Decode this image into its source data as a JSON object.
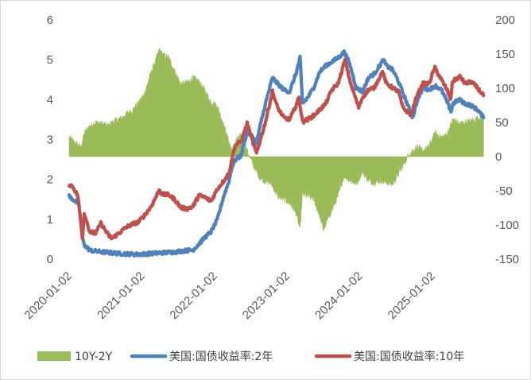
{
  "chart_data": {
    "type": "line",
    "x_ticks": [
      "2020-01-02",
      "2021-01-02",
      "2022-01-02",
      "2023-01-02",
      "2024-01-02",
      "2025-01-02"
    ],
    "y_left": {
      "range": [
        0,
        6
      ],
      "ticks": [
        0,
        1,
        2,
        3,
        4,
        5,
        6
      ]
    },
    "y_right": {
      "range": [
        -150,
        200
      ],
      "ticks": [
        -150,
        -100,
        -50,
        0,
        50,
        100,
        150,
        200
      ]
    },
    "x_range": [
      "2020-01-02",
      "2025-09-15"
    ],
    "grid": false,
    "legend_position": "bottom",
    "series": [
      {
        "name": "10Y-2Y",
        "type": "area",
        "axis": "right",
        "color": "#9bbb59",
        "points": [
          [
            "2020-01-02",
            28
          ],
          [
            "2020-02-01",
            20
          ],
          [
            "2020-03-01",
            14
          ],
          [
            "2020-03-20",
            35
          ],
          [
            "2020-04-15",
            45
          ],
          [
            "2020-05-15",
            50
          ],
          [
            "2020-06-15",
            48
          ],
          [
            "2020-07-15",
            45
          ],
          [
            "2020-08-15",
            52
          ],
          [
            "2020-09-15",
            55
          ],
          [
            "2020-10-15",
            62
          ],
          [
            "2020-11-15",
            68
          ],
          [
            "2020-12-15",
            78
          ],
          [
            "2021-01-15",
            92
          ],
          [
            "2021-02-15",
            122
          ],
          [
            "2021-03-15",
            143
          ],
          [
            "2021-03-31",
            156
          ],
          [
            "2021-04-20",
            148
          ],
          [
            "2021-05-15",
            145
          ],
          [
            "2021-06-15",
            126
          ],
          [
            "2021-07-15",
            106
          ],
          [
            "2021-08-15",
            108
          ],
          [
            "2021-09-15",
            115
          ],
          [
            "2021-10-15",
            110
          ],
          [
            "2021-11-15",
            96
          ],
          [
            "2021-12-15",
            80
          ],
          [
            "2022-01-15",
            75
          ],
          [
            "2022-02-15",
            48
          ],
          [
            "2022-03-15",
            22
          ],
          [
            "2022-04-01",
            8
          ],
          [
            "2022-04-20",
            24
          ],
          [
            "2022-05-15",
            30
          ],
          [
            "2022-06-15",
            8
          ],
          [
            "2022-07-15",
            -12
          ],
          [
            "2022-08-15",
            -30
          ],
          [
            "2022-09-15",
            -36
          ],
          [
            "2022-10-15",
            -40
          ],
          [
            "2022-11-15",
            -58
          ],
          [
            "2022-12-15",
            -62
          ],
          [
            "2023-01-15",
            -68
          ],
          [
            "2023-02-15",
            -82
          ],
          [
            "2023-03-08",
            -107
          ],
          [
            "2023-03-20",
            -55
          ],
          [
            "2023-04-15",
            -58
          ],
          [
            "2023-05-15",
            -62
          ],
          [
            "2023-06-15",
            -87
          ],
          [
            "2023-07-03",
            -107
          ],
          [
            "2023-08-15",
            -78
          ],
          [
            "2023-09-15",
            -58
          ],
          [
            "2023-10-15",
            -28
          ],
          [
            "2023-11-15",
            -35
          ],
          [
            "2023-12-15",
            -40
          ],
          [
            "2024-01-15",
            -22
          ],
          [
            "2024-02-15",
            -35
          ],
          [
            "2024-03-15",
            -38
          ],
          [
            "2024-04-15",
            -35
          ],
          [
            "2024-05-15",
            -38
          ],
          [
            "2024-06-15",
            -40
          ],
          [
            "2024-07-15",
            -25
          ],
          [
            "2024-08-15",
            -8
          ],
          [
            "2024-09-06",
            4
          ],
          [
            "2024-10-01",
            10
          ],
          [
            "2024-10-15",
            14
          ],
          [
            "2024-11-15",
            8
          ],
          [
            "2024-12-15",
            15
          ],
          [
            "2025-01-15",
            35
          ],
          [
            "2025-02-15",
            28
          ],
          [
            "2025-03-15",
            32
          ],
          [
            "2025-04-15",
            55
          ],
          [
            "2025-05-15",
            48
          ],
          [
            "2025-06-15",
            50
          ],
          [
            "2025-07-15",
            52
          ],
          [
            "2025-08-15",
            56
          ],
          [
            "2025-09-15",
            58
          ]
        ]
      },
      {
        "name": "美国:国债收益率:2年",
        "type": "line",
        "axis": "left",
        "color": "#4f81bd",
        "points": [
          [
            "2020-01-02",
            1.58
          ],
          [
            "2020-02-01",
            1.45
          ],
          [
            "2020-02-20",
            1.38
          ],
          [
            "2020-03-10",
            0.5
          ],
          [
            "2020-03-20",
            0.35
          ],
          [
            "2020-04-15",
            0.22
          ],
          [
            "2020-06-15",
            0.18
          ],
          [
            "2020-09-15",
            0.14
          ],
          [
            "2020-12-15",
            0.12
          ],
          [
            "2021-03-15",
            0.15
          ],
          [
            "2021-06-15",
            0.18
          ],
          [
            "2021-08-15",
            0.22
          ],
          [
            "2021-09-15",
            0.23
          ],
          [
            "2021-10-15",
            0.38
          ],
          [
            "2021-11-15",
            0.55
          ],
          [
            "2021-12-15",
            0.68
          ],
          [
            "2022-01-15",
            0.98
          ],
          [
            "2022-02-15",
            1.55
          ],
          [
            "2022-03-15",
            1.95
          ],
          [
            "2022-03-31",
            2.32
          ],
          [
            "2022-04-15",
            2.48
          ],
          [
            "2022-05-15",
            2.6
          ],
          [
            "2022-06-15",
            3.2
          ],
          [
            "2022-07-15",
            3.05
          ],
          [
            "2022-08-01",
            2.9
          ],
          [
            "2022-08-15",
            3.25
          ],
          [
            "2022-09-15",
            3.9
          ],
          [
            "2022-10-20",
            4.55
          ],
          [
            "2022-11-15",
            4.4
          ],
          [
            "2022-12-15",
            4.25
          ],
          [
            "2023-01-15",
            4.2
          ],
          [
            "2023-02-15",
            4.65
          ],
          [
            "2023-03-08",
            5.05
          ],
          [
            "2023-03-20",
            3.9
          ],
          [
            "2023-04-15",
            4.05
          ],
          [
            "2023-05-15",
            4.3
          ],
          [
            "2023-06-15",
            4.7
          ],
          [
            "2023-07-15",
            4.85
          ],
          [
            "2023-08-15",
            4.95
          ],
          [
            "2023-09-15",
            5.05
          ],
          [
            "2023-10-18",
            5.2
          ],
          [
            "2023-11-15",
            4.85
          ],
          [
            "2023-12-15",
            4.3
          ],
          [
            "2024-01-15",
            4.2
          ],
          [
            "2024-02-15",
            4.55
          ],
          [
            "2024-03-15",
            4.65
          ],
          [
            "2024-04-30",
            5.0
          ],
          [
            "2024-05-15",
            4.85
          ],
          [
            "2024-06-15",
            4.75
          ],
          [
            "2024-07-15",
            4.45
          ],
          [
            "2024-08-15",
            4.05
          ],
          [
            "2024-09-24",
            3.55
          ],
          [
            "2024-10-15",
            3.95
          ],
          [
            "2024-11-15",
            4.3
          ],
          [
            "2024-12-15",
            4.25
          ],
          [
            "2025-01-15",
            4.35
          ],
          [
            "2025-02-15",
            4.25
          ],
          [
            "2025-03-15",
            3.95
          ],
          [
            "2025-04-05",
            3.7
          ],
          [
            "2025-04-15",
            3.9
          ],
          [
            "2025-05-15",
            4.0
          ],
          [
            "2025-06-15",
            3.9
          ],
          [
            "2025-07-15",
            3.85
          ],
          [
            "2025-08-15",
            3.75
          ],
          [
            "2025-09-15",
            3.55
          ]
        ]
      },
      {
        "name": "美国:国债收益率:10年",
        "type": "line",
        "axis": "left",
        "color": "#c0504d",
        "points": [
          [
            "2020-01-02",
            1.88
          ],
          [
            "2020-01-20",
            1.82
          ],
          [
            "2020-02-15",
            1.58
          ],
          [
            "2020-03-09",
            0.55
          ],
          [
            "2020-03-18",
            1.15
          ],
          [
            "2020-04-15",
            0.68
          ],
          [
            "2020-05-15",
            0.65
          ],
          [
            "2020-06-09",
            0.9
          ],
          [
            "2020-07-15",
            0.62
          ],
          [
            "2020-08-04",
            0.52
          ],
          [
            "2020-09-15",
            0.68
          ],
          [
            "2020-10-15",
            0.8
          ],
          [
            "2020-11-15",
            0.88
          ],
          [
            "2020-12-15",
            0.93
          ],
          [
            "2021-01-15",
            1.1
          ],
          [
            "2021-02-15",
            1.3
          ],
          [
            "2021-03-31",
            1.74
          ],
          [
            "2021-04-15",
            1.62
          ],
          [
            "2021-05-15",
            1.62
          ],
          [
            "2021-06-15",
            1.5
          ],
          [
            "2021-07-15",
            1.3
          ],
          [
            "2021-08-15",
            1.26
          ],
          [
            "2021-09-15",
            1.32
          ],
          [
            "2021-10-15",
            1.6
          ],
          [
            "2021-11-15",
            1.55
          ],
          [
            "2021-12-15",
            1.45
          ],
          [
            "2022-01-15",
            1.75
          ],
          [
            "2022-02-15",
            1.95
          ],
          [
            "2022-03-15",
            2.15
          ],
          [
            "2022-04-15",
            2.85
          ],
          [
            "2022-05-15",
            2.95
          ],
          [
            "2022-06-15",
            3.4
          ],
          [
            "2022-07-15",
            2.9
          ],
          [
            "2022-08-01",
            2.65
          ],
          [
            "2022-08-15",
            2.9
          ],
          [
            "2022-09-15",
            3.45
          ],
          [
            "2022-10-20",
            4.2
          ],
          [
            "2022-11-15",
            3.8
          ],
          [
            "2022-12-15",
            3.55
          ],
          [
            "2023-01-15",
            3.5
          ],
          [
            "2023-02-15",
            3.85
          ],
          [
            "2023-03-02",
            4.05
          ],
          [
            "2023-03-20",
            3.45
          ],
          [
            "2023-04-15",
            3.5
          ],
          [
            "2023-05-15",
            3.6
          ],
          [
            "2023-06-15",
            3.75
          ],
          [
            "2023-07-15",
            3.9
          ],
          [
            "2023-08-15",
            4.25
          ],
          [
            "2023-09-15",
            4.4
          ],
          [
            "2023-10-19",
            4.98
          ],
          [
            "2023-11-15",
            4.45
          ],
          [
            "2023-12-27",
            3.8
          ],
          [
            "2024-01-15",
            4.05
          ],
          [
            "2024-02-15",
            4.25
          ],
          [
            "2024-03-15",
            4.3
          ],
          [
            "2024-04-25",
            4.7
          ],
          [
            "2024-05-15",
            4.4
          ],
          [
            "2024-06-15",
            4.3
          ],
          [
            "2024-07-15",
            4.2
          ],
          [
            "2024-08-05",
            3.8
          ],
          [
            "2024-09-16",
            3.62
          ],
          [
            "2024-10-15",
            4.1
          ],
          [
            "2024-11-15",
            4.4
          ],
          [
            "2024-12-15",
            4.4
          ],
          [
            "2025-01-13",
            4.8
          ],
          [
            "2025-02-15",
            4.5
          ],
          [
            "2025-03-15",
            4.25
          ],
          [
            "2025-04-04",
            4.0
          ],
          [
            "2025-04-11",
            4.45
          ],
          [
            "2025-05-20",
            4.58
          ],
          [
            "2025-06-15",
            4.4
          ],
          [
            "2025-07-15",
            4.45
          ],
          [
            "2025-08-15",
            4.3
          ],
          [
            "2025-09-15",
            4.1
          ]
        ]
      }
    ]
  }
}
